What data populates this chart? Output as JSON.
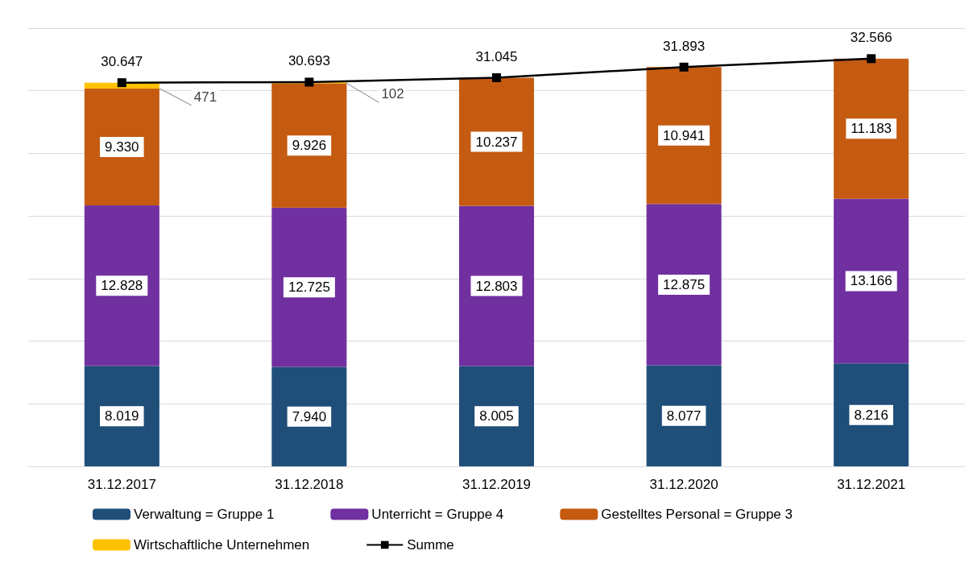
{
  "chart_data": {
    "type": "bar",
    "categories": [
      "31.12.2017",
      "31.12.2018",
      "31.12.2019",
      "31.12.2020",
      "31.12.2021"
    ],
    "series": [
      {
        "name": "Verwaltung = Gruppe 1",
        "color": "#1f4e79",
        "values": [
          8019,
          7940,
          8005,
          8077,
          8216
        ],
        "value_labels": [
          "8.019",
          "7.940",
          "8.005",
          "8.077",
          "8.216"
        ]
      },
      {
        "name": "Unterricht = Gruppe 4",
        "color": "#7030a0",
        "values": [
          12828,
          12725,
          12803,
          12875,
          13166
        ],
        "value_labels": [
          "12.828",
          "12.725",
          "12.803",
          "12.875",
          "13.166"
        ]
      },
      {
        "name": "Gestelltes Personal = Gruppe 3",
        "color": "#c55a11",
        "values": [
          9330,
          9926,
          10237,
          10941,
          11183
        ],
        "value_labels": [
          "9.330",
          "9.926",
          "10.237",
          "10.941",
          "11.183"
        ]
      },
      {
        "name": "Wirtschaftliche Unternehmen",
        "color": "#ffc000",
        "values": [
          471,
          102,
          null,
          null,
          null
        ],
        "value_labels": [
          "471",
          "102",
          null,
          null,
          null
        ]
      },
      {
        "name": "Summe",
        "type": "line",
        "color": "#000000",
        "values": [
          30647,
          30693,
          31045,
          31893,
          32566
        ],
        "value_labels": [
          "30.647",
          "30.693",
          "31.045",
          "31.893",
          "32.566"
        ]
      }
    ],
    "stacked": true,
    "ylim": [
      0,
      35000
    ],
    "yticks": [
      {
        "value": 0,
        "label": null
      },
      {
        "value": 5000,
        "label": null
      },
      {
        "value": 10000,
        "label": null
      },
      {
        "value": 15000,
        "label": null
      },
      {
        "value": 20000,
        "label": null
      },
      {
        "value": 25000,
        "label": null
      },
      {
        "value": 30000,
        "label": null
      },
      {
        "value": 35000,
        "label": null
      }
    ],
    "tick_labels": "x",
    "grid": "y",
    "legend": "bottom",
    "marker": "square",
    "line_style": "solid"
  }
}
